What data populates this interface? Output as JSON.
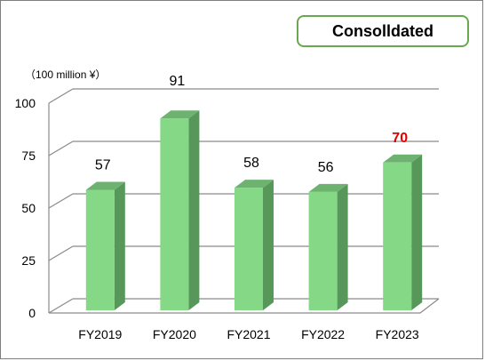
{
  "badge": "Consolldated",
  "chart_data": {
    "type": "bar",
    "title": "",
    "unit_label": "（100 million ¥）",
    "xlabel": "",
    "ylabel": "",
    "categories": [
      "FY2019",
      "FY2020",
      "FY2021",
      "FY2022",
      "FY2023"
    ],
    "values": [
      57,
      91,
      58,
      56,
      70
    ],
    "data_labels": [
      "57",
      "91",
      "58",
      "56",
      "70"
    ],
    "highlight_index": 4,
    "yticks": [
      0,
      25,
      50,
      75,
      100
    ],
    "ylim": [
      0,
      100
    ],
    "grid": true,
    "legend": "none",
    "colors": {
      "bar_front": "#85d885",
      "bar_side": "#57975a",
      "bar_top": "#6db36f",
      "grid": "#8a8a8a",
      "label": "#000000",
      "highlight_label": "#e00000"
    }
  }
}
